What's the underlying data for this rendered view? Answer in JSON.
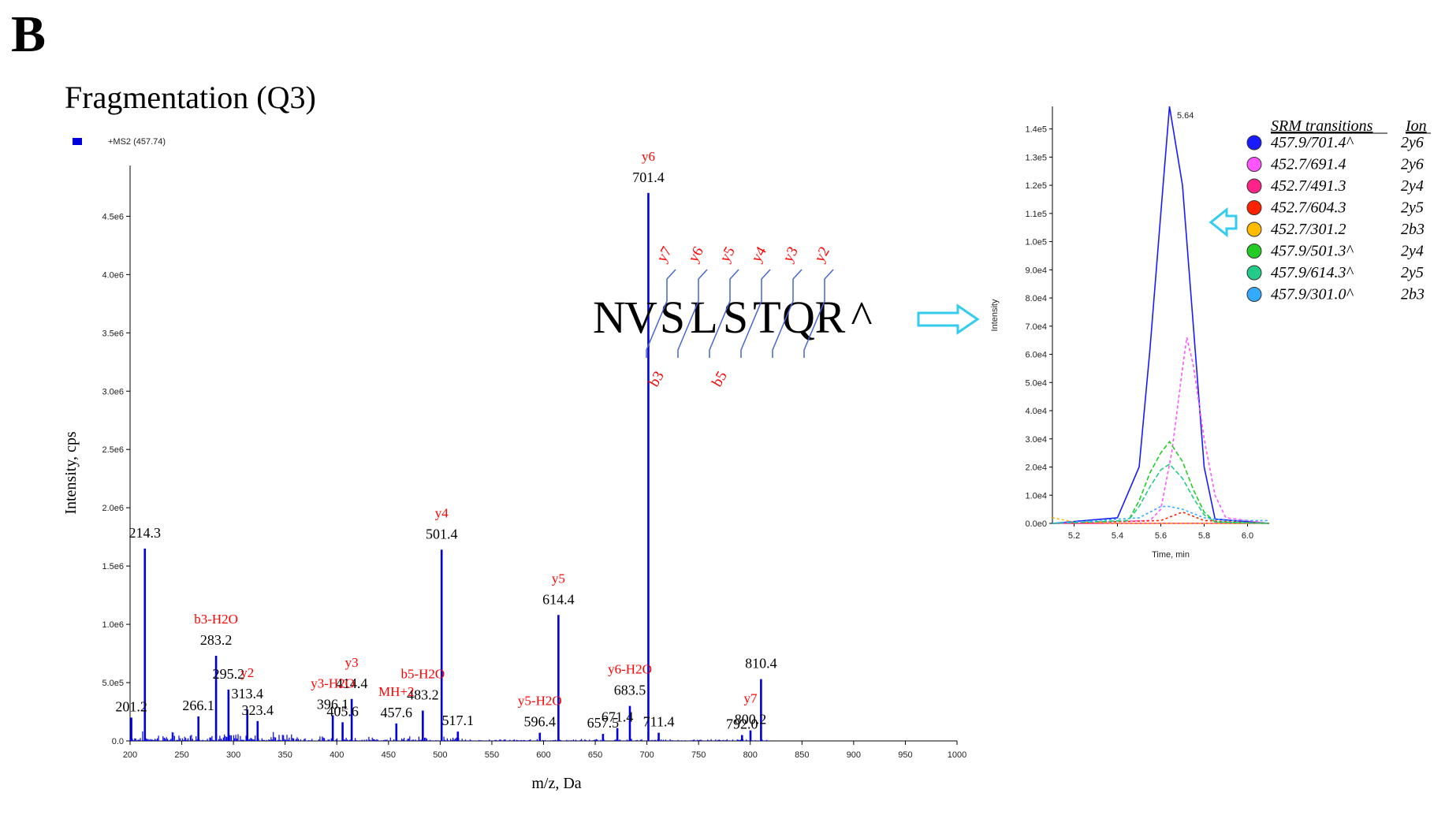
{
  "panel_letter": "B",
  "title": "Fragmentation (Q3)",
  "chart_data": [
    {
      "type": "bar",
      "legend": "+MS2 (457.74)",
      "xlabel": "m/z, Da",
      "ylabel": "Intensity, cps",
      "xlim": [
        200,
        1000
      ],
      "ylim": [
        0,
        4800000
      ],
      "x_ticks": [
        200,
        250,
        300,
        350,
        400,
        450,
        500,
        550,
        600,
        650,
        700,
        750,
        800,
        850,
        900,
        950,
        1000
      ],
      "y_ticks": [
        {
          "v": 0,
          "t": "0.0"
        },
        {
          "v": 500000,
          "t": "5.0e5"
        },
        {
          "v": 1000000,
          "t": "1.0e6"
        },
        {
          "v": 1500000,
          "t": "1.5e6"
        },
        {
          "v": 2000000,
          "t": "2.0e6"
        },
        {
          "v": 2500000,
          "t": "2.5e6"
        },
        {
          "v": 3000000,
          "t": "3.0e6"
        },
        {
          "v": 3500000,
          "t": "3.5e6"
        },
        {
          "v": 4000000,
          "t": "4.0e6"
        },
        {
          "v": 4500000,
          "t": "4.5e6"
        }
      ],
      "color": "#0000dd",
      "peaks": [
        {
          "mz": 214.3,
          "i": 1650000,
          "label": "214.3"
        },
        {
          "mz": 283.2,
          "i": 730000,
          "label": "283.2",
          "ion": "b3-H2O"
        },
        {
          "mz": 295.2,
          "i": 440000,
          "label": "295.2"
        },
        {
          "mz": 313.4,
          "i": 270000,
          "label": "313.4",
          "ion": "y2"
        },
        {
          "mz": 414.4,
          "i": 360000,
          "label": "414.4",
          "ion": "y3"
        },
        {
          "mz": 396.1,
          "i": 220000,
          "label": "396.1",
          "ion": "y3-H2O"
        },
        {
          "mz": 483.2,
          "i": 260000,
          "label": "483.2",
          "ion": "b5-H2O"
        },
        {
          "mz": 501.4,
          "i": 1640000,
          "label": "501.4",
          "ion": "y4"
        },
        {
          "mz": 614.4,
          "i": 1080000,
          "label": "614.4",
          "ion": "y5"
        },
        {
          "mz": 683.5,
          "i": 300000,
          "label": "683.5",
          "ion": "y6-H2O"
        },
        {
          "mz": 701.4,
          "i": 4700000,
          "label": "701.4",
          "ion": "y6"
        },
        {
          "mz": 810.4,
          "i": 530000,
          "label": "810.4"
        },
        {
          "mz": 800.2,
          "i": 90000,
          "label": "800.2",
          "ion": "y7"
        },
        {
          "mz": 201.2,
          "i": 200000,
          "label": "201.2"
        },
        {
          "mz": 266.1,
          "i": 210000,
          "label": "266.1"
        },
        {
          "mz": 323.4,
          "i": 170000,
          "label": "323.4"
        },
        {
          "mz": 405.6,
          "i": 160000,
          "label": "405.6"
        },
        {
          "mz": 457.6,
          "i": 150000,
          "label": "457.6",
          "ion": "MH+2"
        },
        {
          "mz": 517.1,
          "i": 80000,
          "label": "517.1"
        },
        {
          "mz": 596.4,
          "i": 70000,
          "label": "596.4",
          "ion": "y5-H2O"
        },
        {
          "mz": 657.5,
          "i": 60000,
          "label": "657.5"
        },
        {
          "mz": 671.4,
          "i": 110000,
          "label": "671.4"
        },
        {
          "mz": 711.4,
          "i": 70000,
          "label": "711.4"
        },
        {
          "mz": 792.0,
          "i": 50000,
          "label": "792.0"
        }
      ]
    },
    {
      "type": "line",
      "xlabel": "Time, min",
      "ylabel": "Intensity",
      "xlim": [
        5.1,
        6.1
      ],
      "ylim": [
        0,
        148000
      ],
      "x_ticks": [
        "5.2",
        "5.4",
        "5.6",
        "5.8",
        "6.0"
      ],
      "y_ticks": [
        {
          "v": 0,
          "t": "0.0e0"
        },
        {
          "v": 10000,
          "t": "1.0e4"
        },
        {
          "v": 20000,
          "t": "2.0e4"
        },
        {
          "v": 30000,
          "t": "3.0e4"
        },
        {
          "v": 40000,
          "t": "4.0e4"
        },
        {
          "v": 50000,
          "t": "5.0e4"
        },
        {
          "v": 60000,
          "t": "6.0e4"
        },
        {
          "v": 70000,
          "t": "7.0e4"
        },
        {
          "v": 80000,
          "t": "8.0e4"
        },
        {
          "v": 90000,
          "t": "9.0e4"
        },
        {
          "v": 100000,
          "t": "1.0e5"
        },
        {
          "v": 110000,
          "t": "1.1e5"
        },
        {
          "v": 120000,
          "t": "1.2e5"
        },
        {
          "v": 130000,
          "t": "1.3e5"
        },
        {
          "v": 140000,
          "t": "1.4e5"
        }
      ],
      "peak_label": "5.64",
      "legend_title_transition": "SRM transitions",
      "legend_title_ion": "Ion",
      "series": [
        {
          "name": "457.9/701.4^",
          "ion": "2y6",
          "color": "#1a1aff",
          "dash": "",
          "x": [
            5.1,
            5.4,
            5.5,
            5.55,
            5.6,
            5.64,
            5.7,
            5.75,
            5.8,
            5.85,
            6.1
          ],
          "y": [
            0,
            2000,
            20000,
            62000,
            110000,
            148000,
            120000,
            70000,
            20000,
            1500,
            0
          ]
        },
        {
          "name": "452.7/691.4",
          "ion": "2y6",
          "color": "#ff55ff",
          "dash": "4,3",
          "x": [
            5.1,
            5.55,
            5.6,
            5.65,
            5.7,
            5.72,
            5.75,
            5.8,
            5.85,
            5.9,
            6.1
          ],
          "y": [
            0,
            1000,
            5000,
            25000,
            55000,
            66000,
            56000,
            30000,
            10000,
            2000,
            0
          ]
        },
        {
          "name": "452.7/491.3",
          "ion": "2y4",
          "color": "#ff2288",
          "dash": "",
          "x": [
            5.1,
            6.1
          ],
          "y": [
            0,
            0
          ]
        },
        {
          "name": "452.7/604.3",
          "ion": "2y5",
          "color": "#ff2200",
          "dash": "3,3",
          "x": [
            5.1,
            5.6,
            5.7,
            5.8,
            6.1
          ],
          "y": [
            0,
            1000,
            4000,
            1000,
            0
          ]
        },
        {
          "name": "452.7/301.2",
          "ion": "2b3",
          "color": "#ffbb00",
          "dash": "3,3",
          "x": [
            5.1,
            5.2,
            5.4,
            6.1
          ],
          "y": [
            2000,
            500,
            0,
            0
          ]
        },
        {
          "name": "457.9/501.3^",
          "ion": "2y4",
          "color": "#22cc22",
          "dash": "6,3",
          "x": [
            5.1,
            5.45,
            5.5,
            5.55,
            5.6,
            5.64,
            5.7,
            5.75,
            5.8,
            5.85,
            6.1
          ],
          "y": [
            0,
            1000,
            8000,
            18000,
            25000,
            29000,
            22000,
            12000,
            4000,
            500,
            0
          ]
        },
        {
          "name": "457.9/614.3^",
          "ion": "2y5",
          "color": "#22cc88",
          "dash": "6,3",
          "x": [
            5.1,
            5.45,
            5.5,
            5.55,
            5.6,
            5.64,
            5.7,
            5.75,
            5.8,
            5.85,
            6.1
          ],
          "y": [
            0,
            1000,
            6000,
            13000,
            19000,
            21000,
            16000,
            9000,
            3000,
            500,
            0
          ]
        },
        {
          "name": "457.9/301.0^",
          "ion": "2b3",
          "color": "#33aaff",
          "dash": "3,3",
          "x": [
            5.1,
            5.5,
            5.6,
            5.64,
            5.7,
            5.8,
            5.9,
            6.1
          ],
          "y": [
            0,
            2000,
            6000,
            6000,
            5000,
            2000,
            1000,
            1000
          ]
        }
      ]
    }
  ],
  "peptide": {
    "residues": [
      "N",
      "V",
      "S",
      "L",
      "S",
      "T",
      "Q",
      "R",
      "^"
    ],
    "y_ions": [
      "y7",
      "y6",
      "y5",
      "y4",
      "y3",
      "y2"
    ],
    "b_ions": [
      "b3",
      "b5"
    ]
  }
}
